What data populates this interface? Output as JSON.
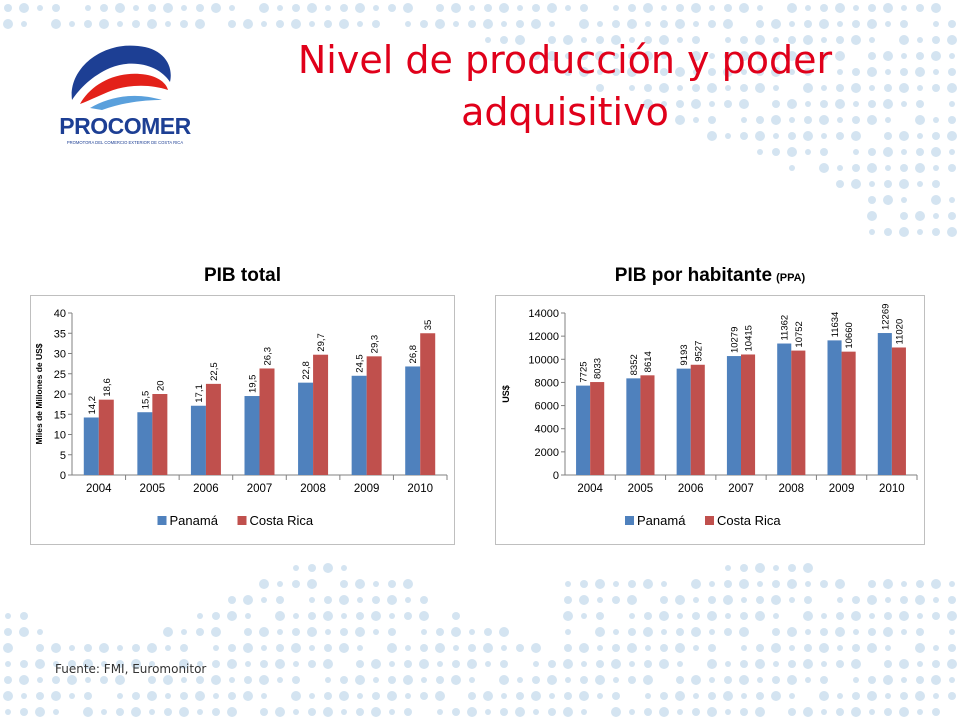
{
  "slide": {
    "title_line1": "Nivel de producción y poder",
    "title_line2": "adquisitivo",
    "logo_text": "PROCOMER",
    "logo_subtext": "PROMOTORA DEL COMERCIO EXTERIOR DE COSTA RICA",
    "footer": "Fuente: FMI, Euromonitor"
  },
  "colors": {
    "title": "#e0001a",
    "panama": "#4f81bd",
    "costa_rica": "#c0504d",
    "dots": "#d4e4f1",
    "logo_blue": "#1d3f94",
    "logo_red": "#e32119"
  },
  "chart_data": [
    {
      "type": "bar",
      "title": "PIB total",
      "title_suffix": "",
      "ylabel": "Miles de Millones de US$",
      "categories": [
        "2004",
        "2005",
        "2006",
        "2007",
        "2008",
        "2009",
        "2010"
      ],
      "ylim": [
        0,
        40
      ],
      "yticks": [
        0,
        5,
        10,
        15,
        20,
        25,
        30,
        35,
        40
      ],
      "legend": "bottom",
      "series": [
        {
          "name": "Panamá",
          "values": [
            14.2,
            15.5,
            17.1,
            19.5,
            22.8,
            24.5,
            26.8
          ],
          "labels": [
            "14,2",
            "15,5",
            "17,1",
            "19,5",
            "22,8",
            "24,5",
            "26,8"
          ]
        },
        {
          "name": "Costa Rica",
          "values": [
            18.6,
            20,
            22.5,
            26.3,
            29.7,
            29.3,
            35
          ],
          "labels": [
            "18,6",
            "20",
            "22,5",
            "26,3",
            "29,7",
            "29,3",
            "35"
          ]
        }
      ]
    },
    {
      "type": "bar",
      "title": "PIB por habitante",
      "title_suffix": "(PPA)",
      "ylabel": "US$",
      "categories": [
        "2004",
        "2005",
        "2006",
        "2007",
        "2008",
        "2009",
        "2010"
      ],
      "ylim": [
        0,
        14000
      ],
      "yticks": [
        0,
        2000,
        4000,
        6000,
        8000,
        10000,
        12000,
        14000
      ],
      "legend": "bottom",
      "series": [
        {
          "name": "Panamá",
          "values": [
            7725,
            8352,
            9193,
            10279,
            11362,
            11634,
            12269
          ],
          "labels": [
            "7725",
            "8352",
            "9193",
            "10279",
            "11362",
            "11634",
            "12269"
          ]
        },
        {
          "name": "Costa Rica",
          "values": [
            8033,
            8614,
            9527,
            10415,
            10752,
            10660,
            11020
          ],
          "labels": [
            "8033",
            "8614",
            "9527",
            "10415",
            "10752",
            "10660",
            "11020"
          ]
        }
      ]
    }
  ]
}
